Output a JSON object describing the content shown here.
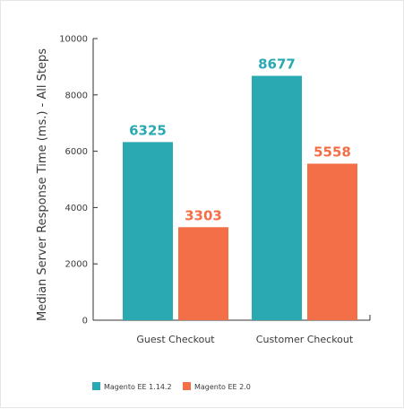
{
  "chart_data": {
    "type": "bar",
    "categories": [
      "Guest Checkout",
      "Customer Checkout"
    ],
    "series": [
      {
        "name": "Magento EE 1.14.2",
        "values": [
          6325,
          8677
        ],
        "color": "#2aa9b3"
      },
      {
        "name": "Magento EE 2.0",
        "values": [
          3303,
          5558
        ],
        "color": "#f26f47"
      }
    ],
    "ylabel": "Median Server Response Time (ms.) - All Steps",
    "xlabel": "",
    "ylim": [
      0,
      10000
    ],
    "yticks": [
      0,
      2000,
      4000,
      6000,
      8000,
      10000
    ],
    "grid": false,
    "legend": "bottom-left",
    "data_labels": true
  }
}
